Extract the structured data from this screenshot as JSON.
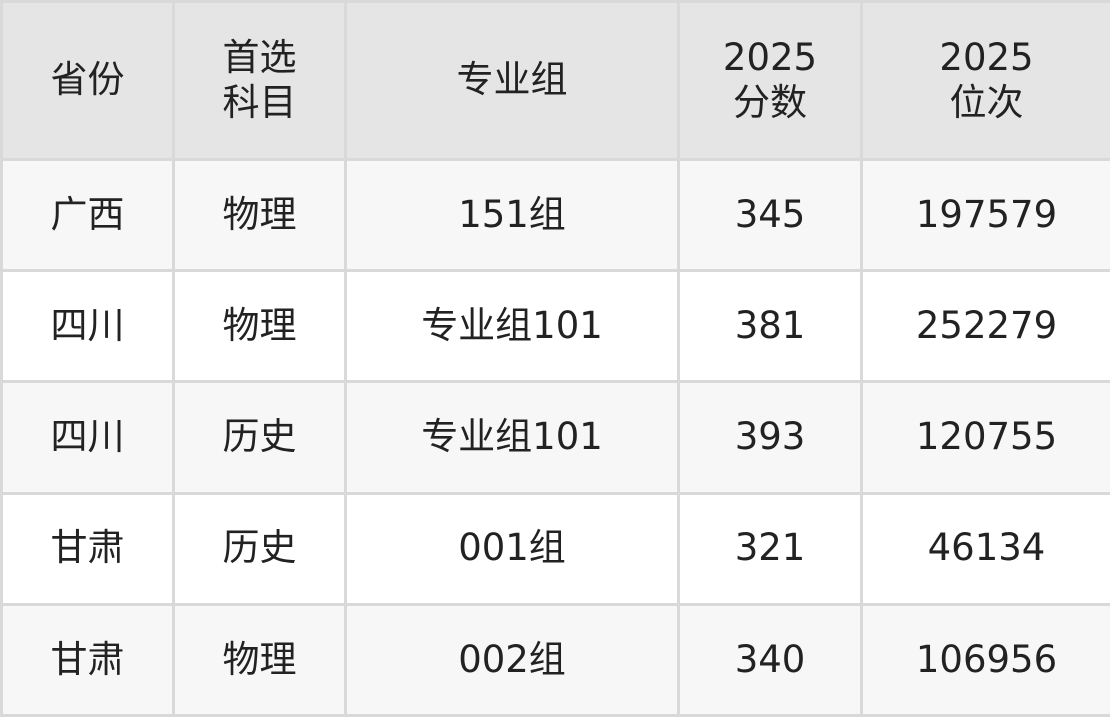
{
  "table": {
    "headers": [
      [
        "省份"
      ],
      [
        "首选",
        "科目"
      ],
      [
        "专业组"
      ],
      [
        "2025",
        "分数"
      ],
      [
        "2025",
        "位次"
      ]
    ],
    "rows": [
      [
        "广西",
        "物理",
        "151组",
        "345",
        "197579"
      ],
      [
        "四川",
        "物理",
        "专业组101",
        "381",
        "252279"
      ],
      [
        "四川",
        "历史",
        "专业组101",
        "393",
        "120755"
      ],
      [
        "甘肃",
        "历史",
        "001组",
        "321",
        "46134"
      ],
      [
        "甘肃",
        "物理",
        "002组",
        "340",
        "106956"
      ]
    ]
  },
  "colors": {
    "header_bg": "#e5e5e5",
    "alt_row_bg": "#f7f7f7",
    "border": "#d9d9d9"
  }
}
